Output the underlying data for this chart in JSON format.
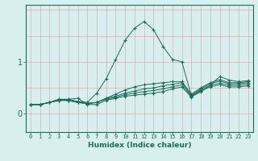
{
  "xlabel": "Humidex (Indice chaleur)",
  "bg_color": "#d7efef",
  "line_color": "#1a6b5a",
  "grid_color_v": "#e8a8a8",
  "grid_color_h": "#e8a8a8",
  "xlim": [
    -0.5,
    23.5
  ],
  "ylim": [
    -0.35,
    2.1
  ],
  "ytick_positions": [
    0.0,
    1.0
  ],
  "ytick_labels": [
    "0",
    "1"
  ],
  "xticks": [
    0,
    1,
    2,
    3,
    4,
    5,
    6,
    7,
    8,
    9,
    10,
    11,
    12,
    13,
    14,
    15,
    16,
    17,
    18,
    19,
    20,
    21,
    22,
    23
  ],
  "series": [
    [
      0.18,
      0.18,
      0.22,
      0.28,
      0.28,
      0.24,
      0.22,
      0.4,
      0.68,
      1.05,
      1.42,
      1.65,
      1.78,
      1.62,
      1.3,
      1.05,
      1.0,
      0.35,
      0.42,
      0.55,
      0.72,
      0.65,
      0.62,
      0.64
    ],
    [
      0.18,
      0.18,
      0.22,
      0.26,
      0.26,
      0.22,
      0.2,
      0.22,
      0.3,
      0.38,
      0.46,
      0.52,
      0.56,
      0.58,
      0.6,
      0.62,
      0.62,
      0.38,
      0.5,
      0.6,
      0.66,
      0.6,
      0.6,
      0.62
    ],
    [
      0.18,
      0.18,
      0.22,
      0.26,
      0.26,
      0.22,
      0.2,
      0.22,
      0.3,
      0.34,
      0.4,
      0.44,
      0.48,
      0.5,
      0.54,
      0.57,
      0.6,
      0.36,
      0.48,
      0.58,
      0.63,
      0.58,
      0.58,
      0.6
    ],
    [
      0.18,
      0.18,
      0.22,
      0.26,
      0.26,
      0.22,
      0.2,
      0.22,
      0.28,
      0.32,
      0.37,
      0.4,
      0.43,
      0.45,
      0.48,
      0.52,
      0.56,
      0.34,
      0.46,
      0.55,
      0.59,
      0.55,
      0.55,
      0.57
    ],
    [
      0.18,
      0.18,
      0.22,
      0.28,
      0.28,
      0.3,
      0.18,
      0.18,
      0.26,
      0.3,
      0.34,
      0.36,
      0.38,
      0.4,
      0.43,
      0.48,
      0.52,
      0.32,
      0.44,
      0.52,
      0.56,
      0.52,
      0.52,
      0.54
    ]
  ]
}
